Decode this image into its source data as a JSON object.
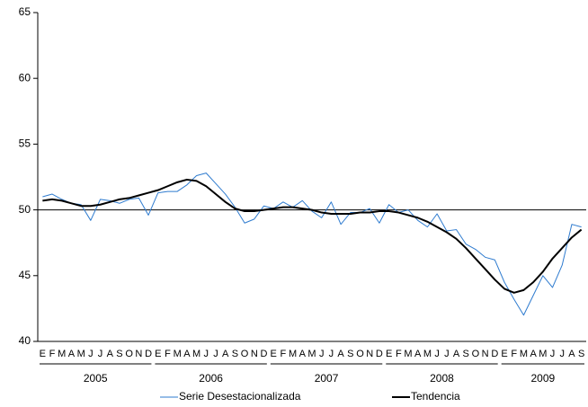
{
  "chart_data": {
    "type": "line",
    "categories": [
      "E",
      "F",
      "M",
      "A",
      "M",
      "J",
      "J",
      "A",
      "S",
      "O",
      "N",
      "D",
      "E",
      "F",
      "M",
      "A",
      "M",
      "J",
      "J",
      "A",
      "S",
      "O",
      "N",
      "D",
      "E",
      "F",
      "M",
      "A",
      "M",
      "J",
      "J",
      "A",
      "S",
      "O",
      "N",
      "D",
      "E",
      "F",
      "M",
      "A",
      "M",
      "J",
      "J",
      "A",
      "S",
      "O",
      "N",
      "D",
      "E",
      "F",
      "M",
      "A",
      "M",
      "J",
      "J",
      "A",
      "S"
    ],
    "year_groups": [
      "2005",
      "2006",
      "2007",
      "2008",
      "2009"
    ],
    "series": [
      {
        "name": "Serie Desestacionalizada",
        "color": "#2e7bcf",
        "width": 1,
        "values": [
          51.0,
          51.2,
          50.8,
          50.5,
          50.4,
          49.2,
          50.8,
          50.7,
          50.5,
          50.8,
          50.9,
          49.6,
          51.3,
          51.4,
          51.4,
          51.9,
          52.6,
          52.8,
          52.0,
          51.2,
          50.2,
          49.0,
          49.3,
          50.3,
          50.1,
          50.6,
          50.2,
          50.7,
          49.9,
          49.4,
          50.6,
          48.9,
          49.8,
          49.8,
          50.1,
          49.0,
          50.4,
          49.8,
          50.0,
          49.2,
          48.7,
          49.7,
          48.4,
          48.5,
          47.4,
          47.0,
          46.4,
          46.2,
          44.5,
          43.2,
          42.0,
          43.5,
          45.0,
          44.1,
          45.8,
          48.9,
          48.7
        ]
      },
      {
        "name": "Tendencia",
        "color": "#000000",
        "width": 2,
        "values": [
          50.7,
          50.8,
          50.7,
          50.5,
          50.3,
          50.3,
          50.4,
          50.6,
          50.8,
          50.9,
          51.1,
          51.3,
          51.5,
          51.8,
          52.1,
          52.3,
          52.2,
          51.8,
          51.2,
          50.6,
          50.1,
          49.9,
          49.9,
          50.0,
          50.1,
          50.2,
          50.2,
          50.1,
          50.0,
          49.8,
          49.7,
          49.7,
          49.7,
          49.8,
          49.8,
          49.9,
          49.9,
          49.8,
          49.6,
          49.4,
          49.1,
          48.7,
          48.3,
          47.8,
          47.1,
          46.3,
          45.5,
          44.7,
          44.0,
          43.7,
          43.9,
          44.5,
          45.3,
          46.3,
          47.1,
          47.9,
          48.5
        ]
      }
    ],
    "ylim": [
      40,
      65
    ],
    "yticks": [
      40,
      45,
      50,
      55,
      60,
      65
    ],
    "reference_line": 50,
    "legend": "bottom"
  }
}
